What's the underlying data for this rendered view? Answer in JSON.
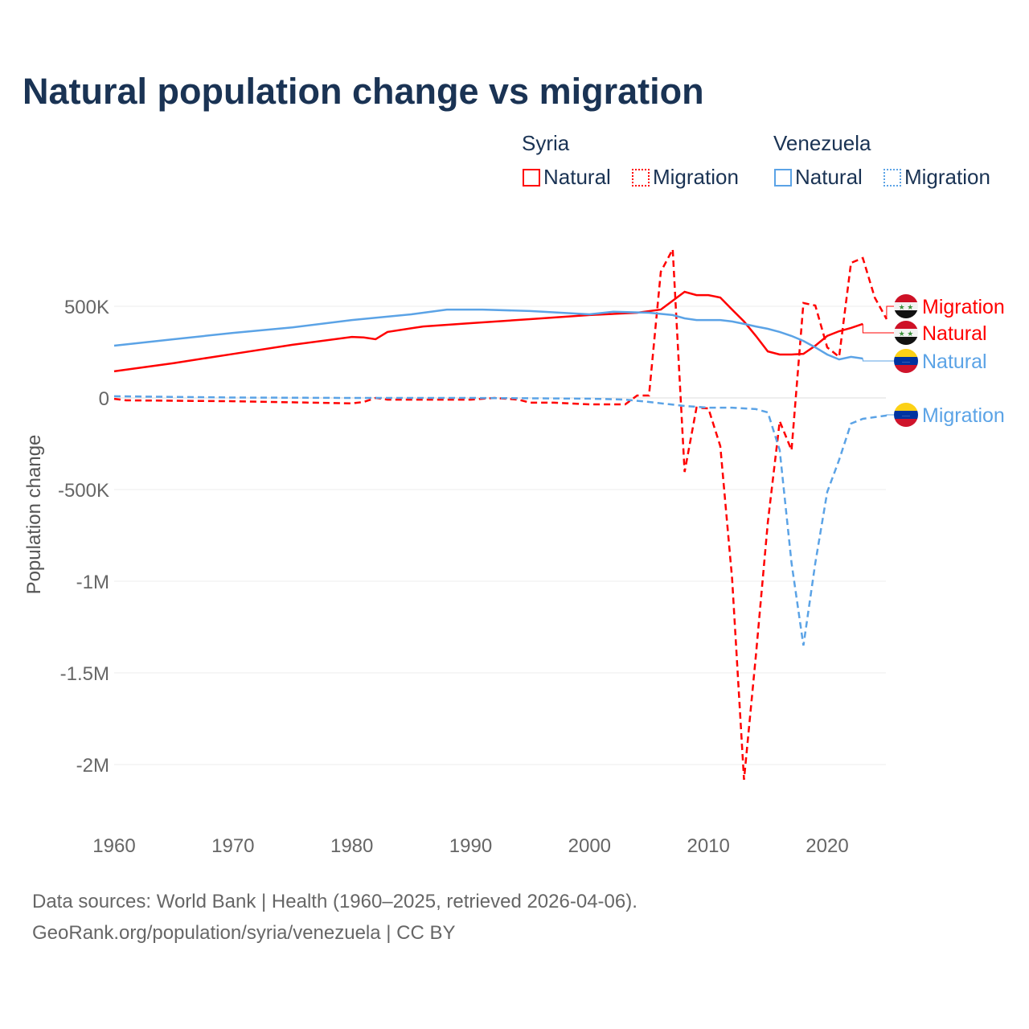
{
  "chart_data": {
    "type": "line",
    "title": "Natural population change vs migration",
    "xlabel": "",
    "ylabel": "Population change",
    "xlim": [
      1960,
      2025
    ],
    "ylim": [
      -2200000,
      800000
    ],
    "xticks": [
      1960,
      1970,
      1980,
      1990,
      2000,
      2010,
      2020
    ],
    "xtick_labels": [
      "1960",
      "1970",
      "1980",
      "1990",
      "2000",
      "2010",
      "2020"
    ],
    "yticks": [
      500000,
      0,
      -500000,
      -1000000,
      -1500000,
      -2000000
    ],
    "ytick_labels": [
      "500K",
      "0",
      "-500K",
      "-1M",
      "-1.5M",
      "-2M"
    ],
    "legend": {
      "groups": [
        {
          "country": "Syria",
          "items": [
            "Natural",
            "Migration"
          ]
        },
        {
          "country": "Venezuela",
          "items": [
            "Natural",
            "Migration"
          ]
        }
      ],
      "placement": "top-right"
    },
    "series": [
      {
        "name": "Syria Natural",
        "label": "Natural",
        "country": "Syria",
        "color": "#ff0000",
        "dash": false,
        "points": [
          [
            1960,
            145000
          ],
          [
            1965,
            190000
          ],
          [
            1970,
            240000
          ],
          [
            1975,
            290000
          ],
          [
            1980,
            333000
          ],
          [
            1981,
            330000
          ],
          [
            1982,
            320000
          ],
          [
            1983,
            360000
          ],
          [
            1986,
            390000
          ],
          [
            1990,
            408000
          ],
          [
            1995,
            430000
          ],
          [
            2000,
            452000
          ],
          [
            2004,
            465000
          ],
          [
            2006,
            482000
          ],
          [
            2008,
            579000
          ],
          [
            2009,
            561000
          ],
          [
            2010,
            561000
          ],
          [
            2011,
            548000
          ],
          [
            2012,
            482000
          ],
          [
            2013,
            417000
          ],
          [
            2014,
            338000
          ],
          [
            2015,
            254000
          ],
          [
            2016,
            237000
          ],
          [
            2017,
            237000
          ],
          [
            2018,
            241000
          ],
          [
            2019,
            285000
          ],
          [
            2020,
            338000
          ],
          [
            2021,
            364000
          ],
          [
            2022,
            382000
          ],
          [
            2023,
            404000
          ]
        ]
      },
      {
        "name": "Syria Migration",
        "label": "Migration",
        "country": "Syria",
        "color": "#ff0000",
        "dash": true,
        "points": [
          [
            1960,
            -5000
          ],
          [
            1961,
            -13000
          ],
          [
            1970,
            -18000
          ],
          [
            1980,
            -30000
          ],
          [
            1981,
            -22000
          ],
          [
            1982,
            0
          ],
          [
            1983,
            -9000
          ],
          [
            1990,
            -9000
          ],
          [
            1992,
            0
          ],
          [
            1994,
            -9000
          ],
          [
            1995,
            -26000
          ],
          [
            1997,
            -26000
          ],
          [
            2000,
            -35000
          ],
          [
            2003,
            -35000
          ],
          [
            2004,
            13000
          ],
          [
            2005,
            13000
          ],
          [
            2006,
            688000
          ],
          [
            2007,
            811000
          ],
          [
            2008,
            -404000
          ],
          [
            2009,
            -53000
          ],
          [
            2010,
            -57000
          ],
          [
            2011,
            -263000
          ],
          [
            2012,
            -987000
          ],
          [
            2013,
            -2083000
          ],
          [
            2014,
            -1404000
          ],
          [
            2015,
            -680000
          ],
          [
            2016,
            -127000
          ],
          [
            2017,
            -285000
          ],
          [
            2018,
            518000
          ],
          [
            2019,
            504000
          ],
          [
            2020,
            276000
          ],
          [
            2021,
            224000
          ],
          [
            2022,
            737000
          ],
          [
            2023,
            763000
          ],
          [
            2024,
            548000
          ],
          [
            2025,
            430000
          ]
        ]
      },
      {
        "name": "Venezuela Natural",
        "label": "Natural",
        "country": "Venezuela",
        "color": "#5ba3e6",
        "dash": false,
        "points": [
          [
            1960,
            285000
          ],
          [
            1965,
            320000
          ],
          [
            1970,
            355000
          ],
          [
            1975,
            385000
          ],
          [
            1980,
            425000
          ],
          [
            1985,
            456000
          ],
          [
            1988,
            482000
          ],
          [
            1991,
            482000
          ],
          [
            1995,
            474000
          ],
          [
            2000,
            456000
          ],
          [
            2002,
            470000
          ],
          [
            2005,
            465000
          ],
          [
            2007,
            452000
          ],
          [
            2008,
            434000
          ],
          [
            2009,
            425000
          ],
          [
            2011,
            425000
          ],
          [
            2012,
            417000
          ],
          [
            2013,
            404000
          ],
          [
            2014,
            390000
          ],
          [
            2015,
            377000
          ],
          [
            2016,
            360000
          ],
          [
            2017,
            338000
          ],
          [
            2018,
            311000
          ],
          [
            2019,
            276000
          ],
          [
            2020,
            237000
          ],
          [
            2021,
            210000
          ],
          [
            2022,
            224000
          ],
          [
            2023,
            215000
          ]
        ]
      },
      {
        "name": "Venezuela Migration",
        "label": "Migration",
        "country": "Venezuela",
        "color": "#5ba3e6",
        "dash": true,
        "points": [
          [
            1960,
            9000
          ],
          [
            1970,
            2000
          ],
          [
            1980,
            0
          ],
          [
            1990,
            0
          ],
          [
            2000,
            -4000
          ],
          [
            2003,
            -9000
          ],
          [
            2005,
            -22000
          ],
          [
            2008,
            -44000
          ],
          [
            2010,
            -53000
          ],
          [
            2012,
            -53000
          ],
          [
            2014,
            -61000
          ],
          [
            2015,
            -79000
          ],
          [
            2016,
            -285000
          ],
          [
            2017,
            -900000
          ],
          [
            2018,
            -1351000
          ],
          [
            2019,
            -900000
          ],
          [
            2020,
            -513000
          ],
          [
            2021,
            -338000
          ],
          [
            2022,
            -140000
          ],
          [
            2023,
            -114000
          ],
          [
            2024,
            -105000
          ],
          [
            2025,
            -96000
          ]
        ]
      }
    ],
    "end_labels": [
      {
        "text": "Migration",
        "flag": "Syria",
        "color": "#ff0000"
      },
      {
        "text": "Natural",
        "flag": "Syria",
        "color": "#ff0000"
      },
      {
        "text": "Natural",
        "flag": "Venezuela",
        "color": "#5ba3e6"
      },
      {
        "text": "Migration",
        "flag": "Venezuela",
        "color": "#5ba3e6"
      }
    ]
  },
  "footer": {
    "line1": "Data sources: World Bank | Health (1960–2025, retrieved 2026-04-06).",
    "line2": "GeoRank.org/population/syria/venezuela | CC BY"
  }
}
